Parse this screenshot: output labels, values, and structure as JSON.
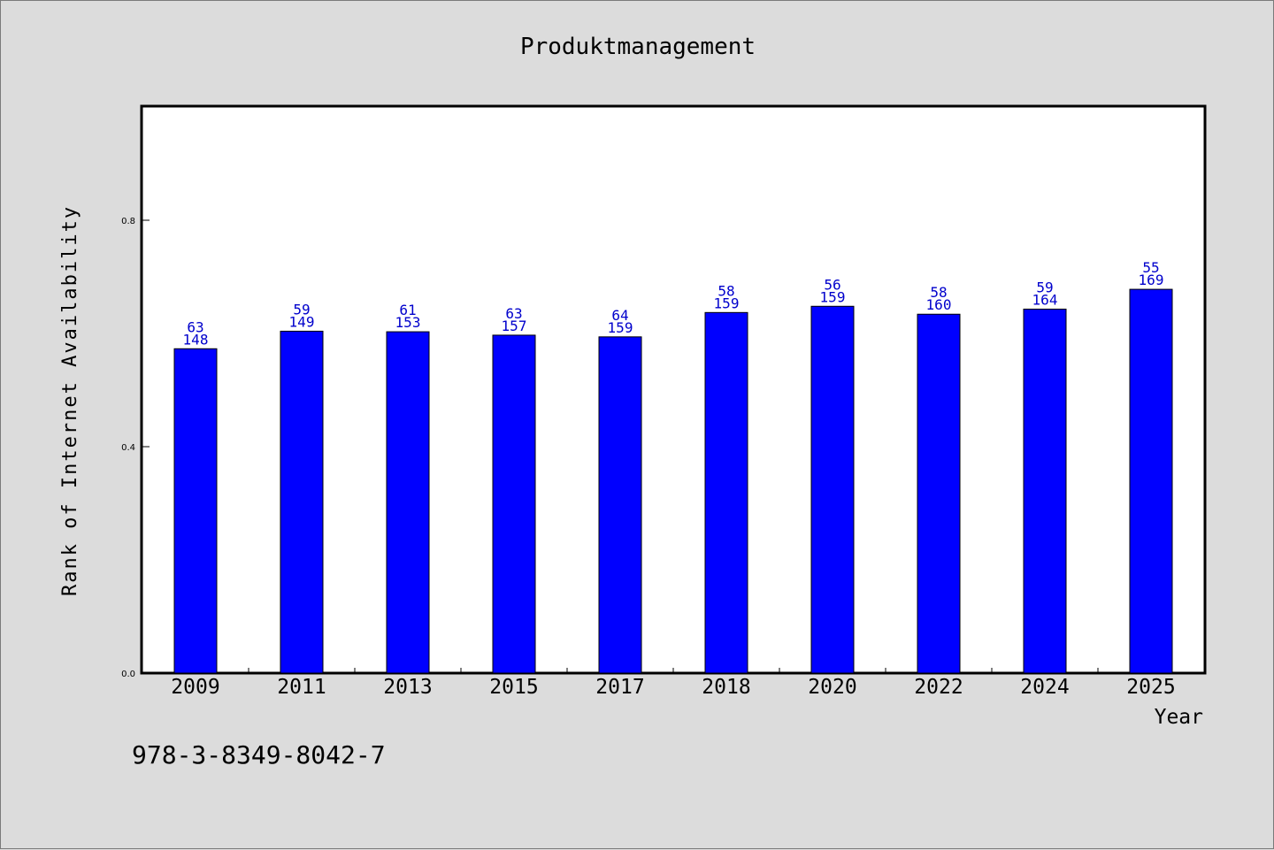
{
  "chart_data": {
    "type": "bar",
    "title": "Produktmanagement",
    "xlabel": "Year",
    "ylabel": "Rank of Internet Availability",
    "ylim": [
      0,
      1.0
    ],
    "yticks": [
      0.0,
      0.4,
      0.8
    ],
    "ytick_labels": [
      "0.0",
      "0.4",
      "0.8"
    ],
    "grid": false,
    "bar_color": "#0000ff",
    "label_color": "#0000cc",
    "categories": [
      "2009",
      "2011",
      "2013",
      "2015",
      "2017",
      "2018",
      "2020",
      "2022",
      "2024",
      "2025"
    ],
    "values": [
      0.573,
      0.604,
      0.603,
      0.597,
      0.594,
      0.637,
      0.648,
      0.634,
      0.643,
      0.678
    ],
    "annotations_top": [
      "63",
      "59",
      "61",
      "63",
      "64",
      "58",
      "56",
      "58",
      "59",
      "55"
    ],
    "annotations_bottom": [
      "148",
      "149",
      "153",
      "157",
      "159",
      "159",
      "159",
      "160",
      "164",
      "169"
    ]
  },
  "footnote": "978-3-8349-8042-7"
}
